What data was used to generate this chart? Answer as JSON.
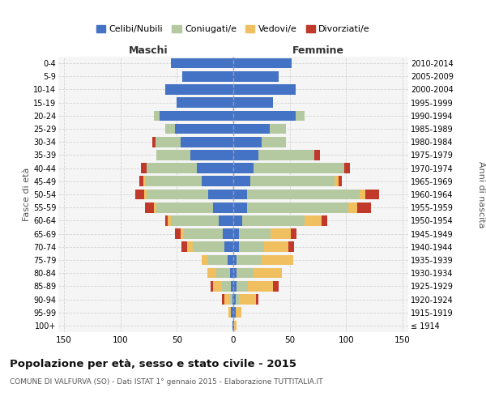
{
  "age_groups": [
    "100+",
    "95-99",
    "90-94",
    "85-89",
    "80-84",
    "75-79",
    "70-74",
    "65-69",
    "60-64",
    "55-59",
    "50-54",
    "45-49",
    "40-44",
    "35-39",
    "30-34",
    "25-29",
    "20-24",
    "15-19",
    "10-14",
    "5-9",
    "0-4"
  ],
  "birth_years": [
    "≤ 1914",
    "1915-1919",
    "1920-1924",
    "1925-1929",
    "1930-1934",
    "1935-1939",
    "1940-1944",
    "1945-1949",
    "1950-1954",
    "1955-1959",
    "1960-1964",
    "1965-1969",
    "1970-1974",
    "1975-1979",
    "1980-1984",
    "1985-1989",
    "1990-1994",
    "1995-1999",
    "2000-2004",
    "2005-2009",
    "2010-2014"
  ],
  "male": {
    "celibe": [
      1,
      2,
      1,
      2,
      3,
      5,
      8,
      9,
      13,
      18,
      22,
      28,
      32,
      38,
      47,
      52,
      65,
      50,
      60,
      45,
      55
    ],
    "coniugato": [
      0,
      0,
      2,
      8,
      12,
      18,
      28,
      35,
      42,
      50,
      55,
      50,
      45,
      30,
      22,
      8,
      5,
      0,
      0,
      0,
      0
    ],
    "vedovo": [
      0,
      2,
      5,
      8,
      8,
      5,
      5,
      3,
      3,
      2,
      2,
      2,
      0,
      0,
      0,
      0,
      0,
      0,
      0,
      0,
      0
    ],
    "divorziato": [
      0,
      0,
      2,
      2,
      0,
      0,
      5,
      5,
      2,
      8,
      8,
      3,
      5,
      0,
      3,
      0,
      0,
      0,
      0,
      0,
      0
    ]
  },
  "female": {
    "nubile": [
      1,
      2,
      2,
      3,
      3,
      3,
      5,
      5,
      8,
      12,
      12,
      15,
      18,
      22,
      25,
      32,
      55,
      35,
      55,
      40,
      52
    ],
    "coniugata": [
      0,
      0,
      3,
      10,
      15,
      22,
      22,
      28,
      55,
      90,
      100,
      75,
      80,
      50,
      22,
      15,
      8,
      0,
      0,
      0,
      0
    ],
    "vedova": [
      2,
      5,
      15,
      22,
      25,
      28,
      22,
      18,
      15,
      8,
      5,
      3,
      0,
      0,
      0,
      0,
      0,
      0,
      0,
      0,
      0
    ],
    "divorziata": [
      0,
      0,
      2,
      5,
      0,
      0,
      5,
      5,
      5,
      12,
      12,
      3,
      5,
      5,
      0,
      0,
      0,
      0,
      0,
      0,
      0
    ]
  },
  "colors": {
    "celibe": "#4472C4",
    "coniugato": "#B5C9A0",
    "vedovo": "#F0C060",
    "divorziato": "#C0392B"
  },
  "xlim": 155,
  "title": "Popolazione per età, sesso e stato civile - 2015",
  "subtitle": "COMUNE DI VALFURVA (SO) - Dati ISTAT 1° gennaio 2015 - Elaborazione TUTTITALIA.IT",
  "xlabel_left": "Maschi",
  "xlabel_right": "Femmine",
  "ylabel_left": "Fasce di età",
  "ylabel_right": "Anni di nascita",
  "legend_labels": [
    "Celibi/Nubili",
    "Coniugati/e",
    "Vedovi/e",
    "Divorziati/e"
  ],
  "background_color": "#ffffff",
  "grid_color": "#cccccc",
  "ax_bg": "#f5f5f5"
}
